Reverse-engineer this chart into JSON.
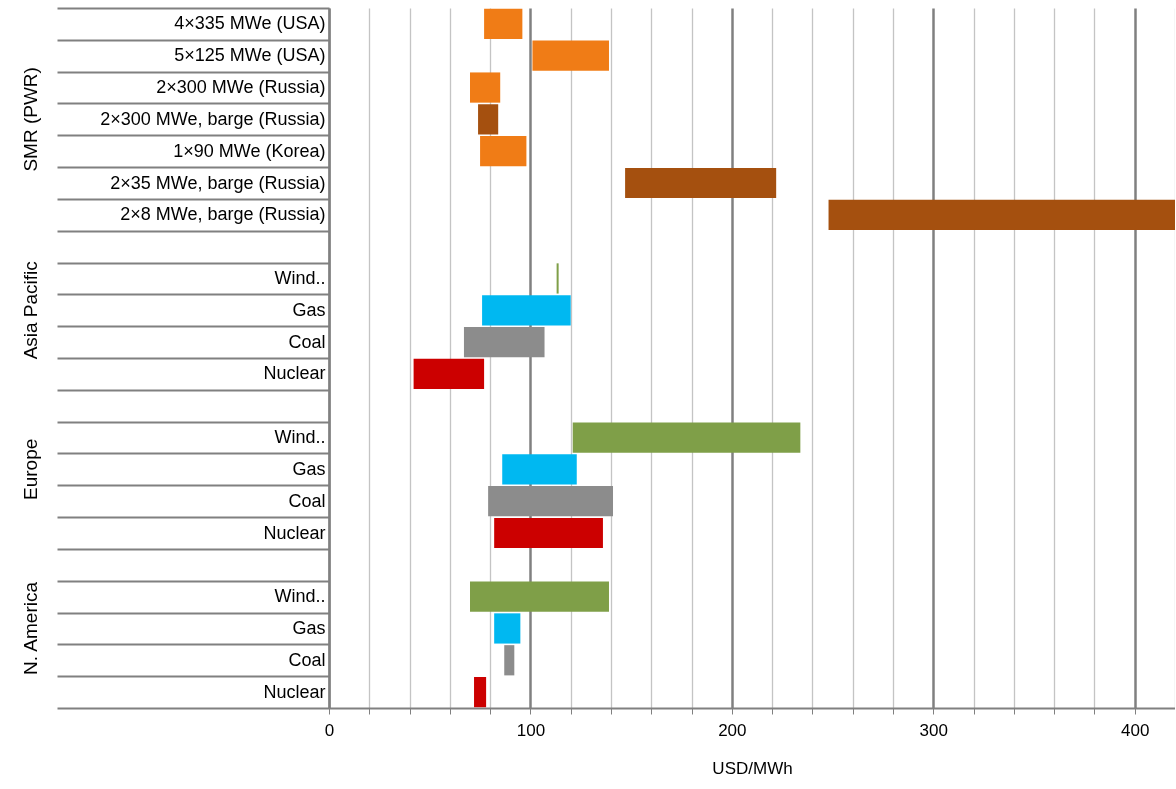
{
  "chart_data": {
    "type": "bar",
    "orientation": "horizontal",
    "xlabel": "USD/MWh",
    "categories": [
      "4×335 MWe (USA)",
      "5×125 MWe (USA)",
      "2×300 MWe (Russia)",
      "2×300 MWe, barge (Russia)",
      "1×90 MWe (Korea)",
      "2×35 MWe, barge (Russia)",
      "2×8 MWe, barge (Russia)",
      null,
      "Wind..",
      "Gas",
      "Coal",
      "Nuclear",
      null,
      "Wind..",
      "Gas",
      "Coal",
      "Nuclear",
      null,
      "Wind..",
      "Gas",
      "Coal",
      "Nuclear"
    ],
    "base": [
      77,
      101,
      70,
      74,
      75,
      147,
      248,
      null,
      113,
      76,
      67,
      42,
      null,
      121,
      86,
      79,
      82,
      null,
      70,
      82,
      87,
      72
    ],
    "values": [
      19,
      38,
      15,
      10,
      23,
      75,
      172,
      null,
      1,
      44,
      40,
      35,
      null,
      113,
      37,
      62,
      54,
      null,
      69,
      13,
      5,
      6
    ],
    "colors": [
      "#f07c16",
      "#f07c16",
      "#f07c16",
      "#a5500f",
      "#f07c16",
      "#a5500f",
      "#a5500f",
      null,
      "#7f9f48",
      "#00b8f1",
      "#8c8c8c",
      "#cc0000",
      null,
      "#7f9f48",
      "#00b8f1",
      "#8c8c8c",
      "#cc0000",
      null,
      "#7f9f48",
      "#00b8f1",
      "#8c8c8c",
      "#cc0000"
    ],
    "xlim": [
      0,
      420
    ],
    "xticks": [
      0,
      {
        "value": 20,
        "label": null
      },
      {
        "value": 40,
        "label": null
      },
      {
        "value": 60,
        "label": null
      },
      {
        "value": 80,
        "label": null
      },
      100,
      {
        "value": 120,
        "label": null
      },
      {
        "value": 140,
        "label": null
      },
      {
        "value": 160,
        "label": null
      },
      {
        "value": 180,
        "label": null
      },
      200,
      {
        "value": 220,
        "label": null
      },
      {
        "value": 240,
        "label": null
      },
      {
        "value": 260,
        "label": null
      },
      {
        "value": 280,
        "label": null
      },
      300,
      {
        "value": 320,
        "label": null
      },
      {
        "value": 340,
        "label": null
      },
      {
        "value": 360,
        "label": null
      },
      {
        "value": 380,
        "label": null
      },
      400,
      {
        "value": 420,
        "label": null
      }
    ],
    "grid": "x",
    "annotations": [
      "SMR (PWR)",
      "Asia Pacific",
      "Europe",
      "N. America"
    ]
  }
}
